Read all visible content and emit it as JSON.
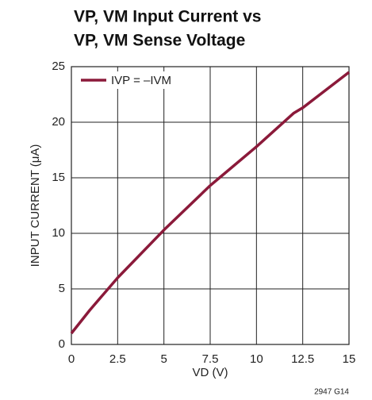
{
  "chart_data": {
    "type": "line",
    "title": [
      "VP, VM Input Current vs",
      "VP, VM Sense Voltage"
    ],
    "xlabel": "VD (V)",
    "ylabel": "INPUT CURRENT (μA)",
    "note": "2947 G14",
    "x": [
      0,
      1,
      2.5,
      5,
      7.5,
      8,
      10,
      12,
      12.5,
      15
    ],
    "series": [
      {
        "name": "IVP = –IVM",
        "color": "#8b1a3a",
        "values": [
          1.0,
          3.1,
          6.0,
          10.3,
          14.3,
          15.0,
          17.8,
          20.8,
          21.3,
          24.5
        ]
      }
    ],
    "xlim": [
      0,
      15
    ],
    "xticks": [
      0,
      2.5,
      5,
      7.5,
      10,
      12.5,
      15
    ],
    "ylim": [
      0,
      25
    ],
    "yticks": [
      0,
      5,
      10,
      15,
      20,
      25
    ],
    "grid": true,
    "legend": "upper left"
  }
}
